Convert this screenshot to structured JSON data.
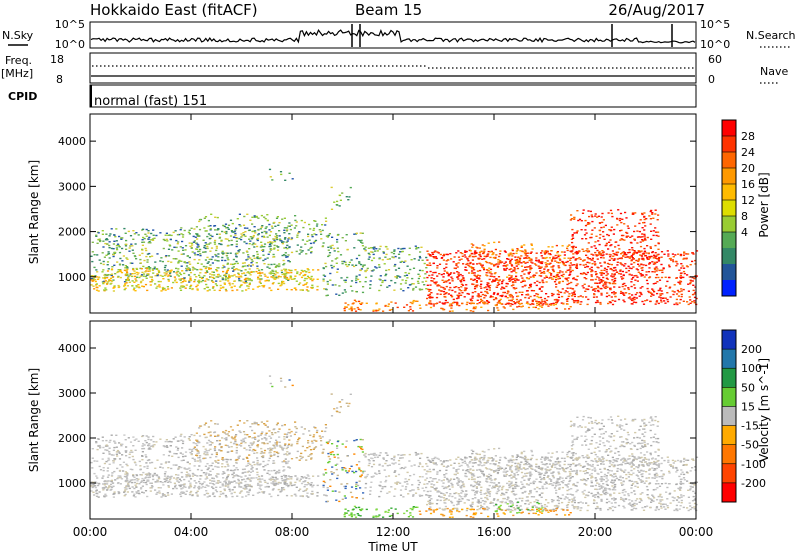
{
  "header": {
    "radar": "Hokkaido East (fitACF)",
    "beam": "Beam 15",
    "date": "26/Aug/2017"
  },
  "nsky_panel": {
    "left_label": "N.Sky",
    "right_label": "N.Search",
    "left_ticks": [
      "10^5",
      "10^0"
    ],
    "right_ticks": [
      "10^5",
      "10^0"
    ]
  },
  "freq_panel": {
    "left_label": "Freq.",
    "left_unit": "[MHz]",
    "right_label": "Nave",
    "left_ticks": [
      "18",
      "8"
    ],
    "right_ticks": [
      "60",
      "0"
    ]
  },
  "cpid_panel": {
    "label": "CPID",
    "text": "normal (fast) 151"
  },
  "chart_data": [
    {
      "type": "heatmap",
      "name": "power",
      "ylabel": "Slant Range [km]",
      "yticks": [
        1000,
        2000,
        3000,
        4000
      ],
      "ylim": [
        200,
        4600
      ],
      "colorbar": {
        "label": "Power [dB]",
        "ticks": [
          "28",
          "24",
          "20",
          "16",
          "12",
          "8",
          "4"
        ],
        "colors": [
          "#ff0000",
          "#ff3300",
          "#ff6600",
          "#ff9900",
          "#ffbb00",
          "#dddd00",
          "#99cc33",
          "#55aa55",
          "#338866",
          "#225599",
          "#0022ff"
        ]
      }
    },
    {
      "type": "heatmap",
      "name": "velocity",
      "ylabel": "Slant Range [km]",
      "yticks": [
        1000,
        2000,
        3000,
        4000
      ],
      "ylim": [
        200,
        4600
      ],
      "colorbar": {
        "label": "Velocity [m s^-1]",
        "ticks": [
          "200",
          "100",
          "50",
          "15",
          "-15",
          "-50",
          "-100",
          "-200"
        ],
        "colors": [
          "#1133bb",
          "#2277aa",
          "#229944",
          "#66cc33",
          "#bbbbbb",
          "#ffaa00",
          "#ff7700",
          "#ff4400",
          "#ff0000"
        ]
      }
    }
  ],
  "x_axis": {
    "label": "Time UT",
    "ticks": [
      "00:00",
      "04:00",
      "08:00",
      "12:00",
      "16:00",
      "20:00",
      "00:00"
    ]
  }
}
